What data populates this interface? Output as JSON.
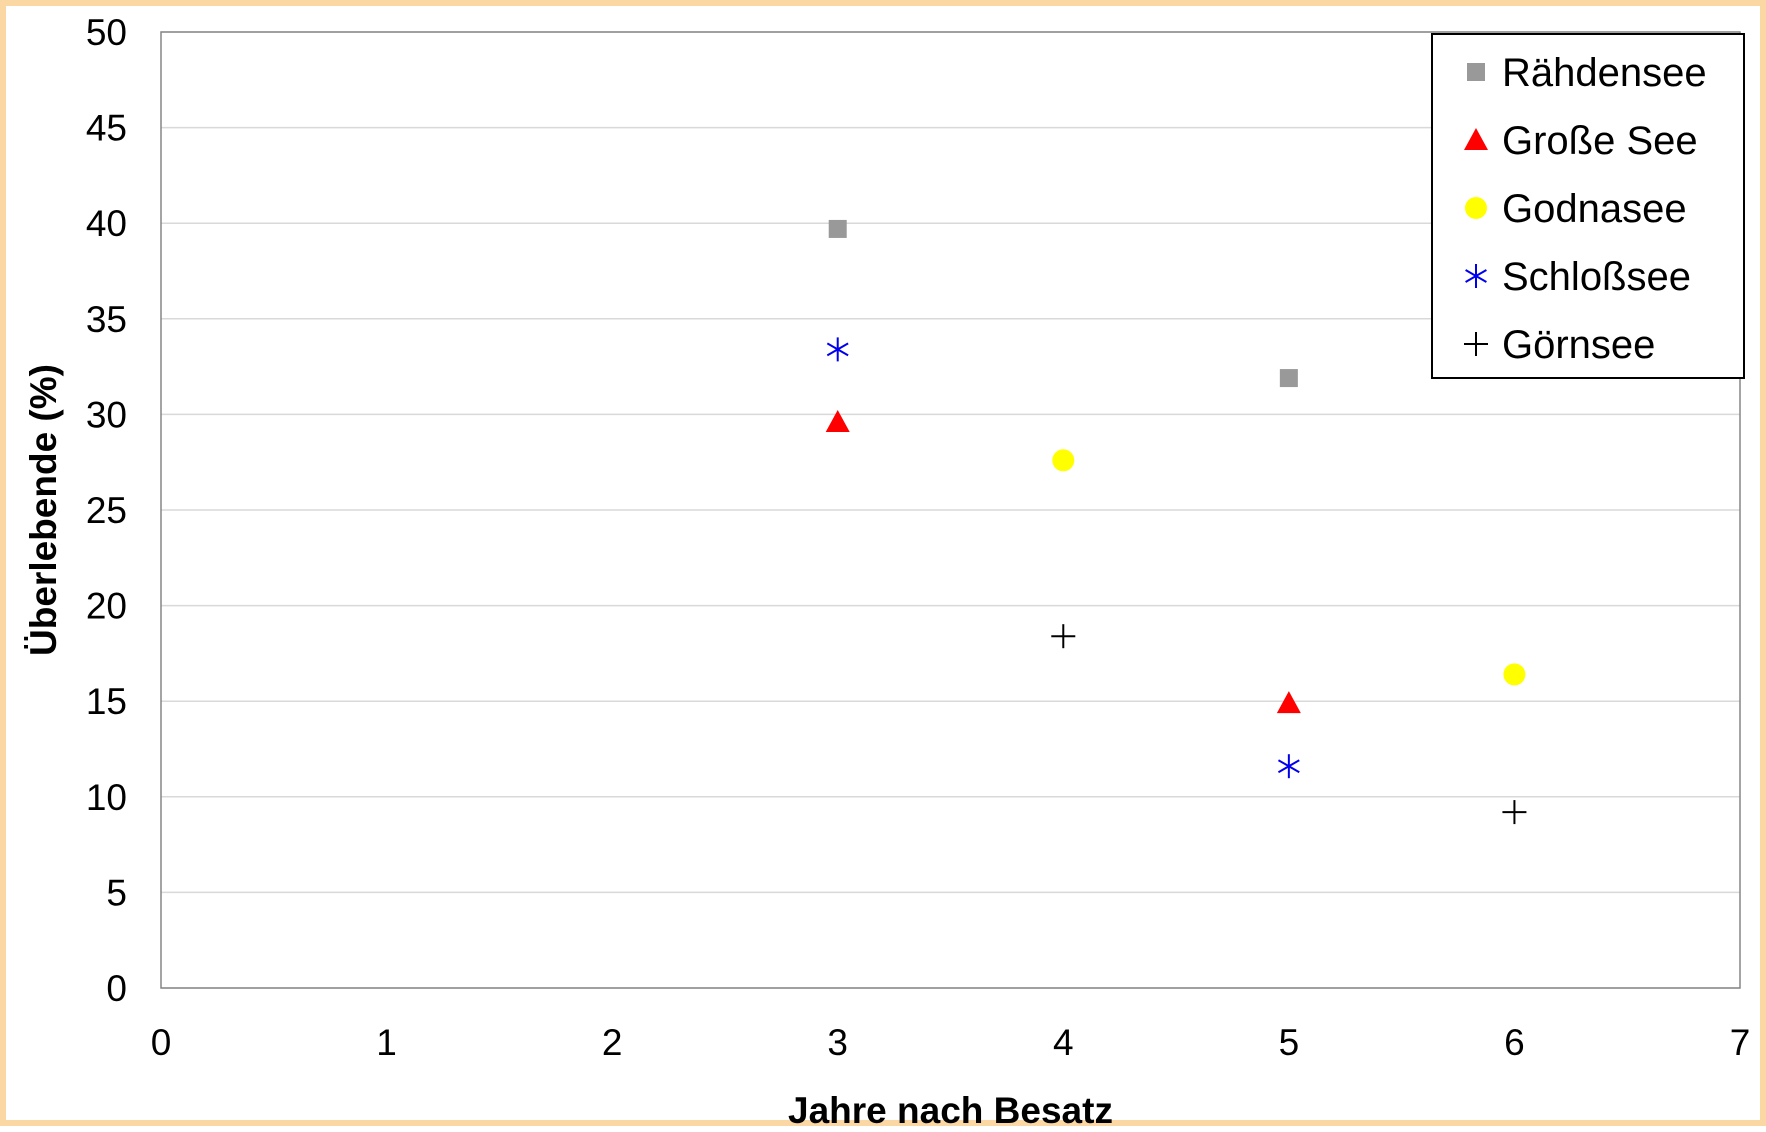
{
  "chart_data": {
    "type": "scatter",
    "title": "",
    "xlabel": "Jahre nach Besatz",
    "ylabel": "Überlebende (%)",
    "xlim": [
      0,
      7
    ],
    "ylim": [
      0,
      50
    ],
    "xticks": [
      0,
      1,
      2,
      3,
      4,
      5,
      6,
      7
    ],
    "yticks": [
      0,
      5,
      10,
      15,
      20,
      25,
      30,
      35,
      40,
      45,
      50
    ],
    "grid": "horizontal",
    "legend_position": "top-right",
    "series": [
      {
        "name": "Rähdensee",
        "marker": "square",
        "color": "#999999",
        "points": [
          [
            3,
            39.7
          ],
          [
            5,
            31.9
          ]
        ]
      },
      {
        "name": "Große See",
        "marker": "triangle",
        "color": "#ff0000",
        "points": [
          [
            3,
            29.6
          ],
          [
            5,
            14.9
          ]
        ]
      },
      {
        "name": "Godnasee",
        "marker": "circle",
        "color": "#ffff00",
        "points": [
          [
            4,
            27.6
          ],
          [
            6,
            16.4
          ]
        ]
      },
      {
        "name": "Schloßsee",
        "marker": "asterisk",
        "color": "#0000ee",
        "points": [
          [
            3,
            33.4
          ],
          [
            5,
            11.6
          ]
        ]
      },
      {
        "name": "Görnsee",
        "marker": "plus",
        "color": "#000000",
        "points": [
          [
            4,
            18.4
          ],
          [
            6,
            9.2
          ]
        ]
      }
    ]
  }
}
